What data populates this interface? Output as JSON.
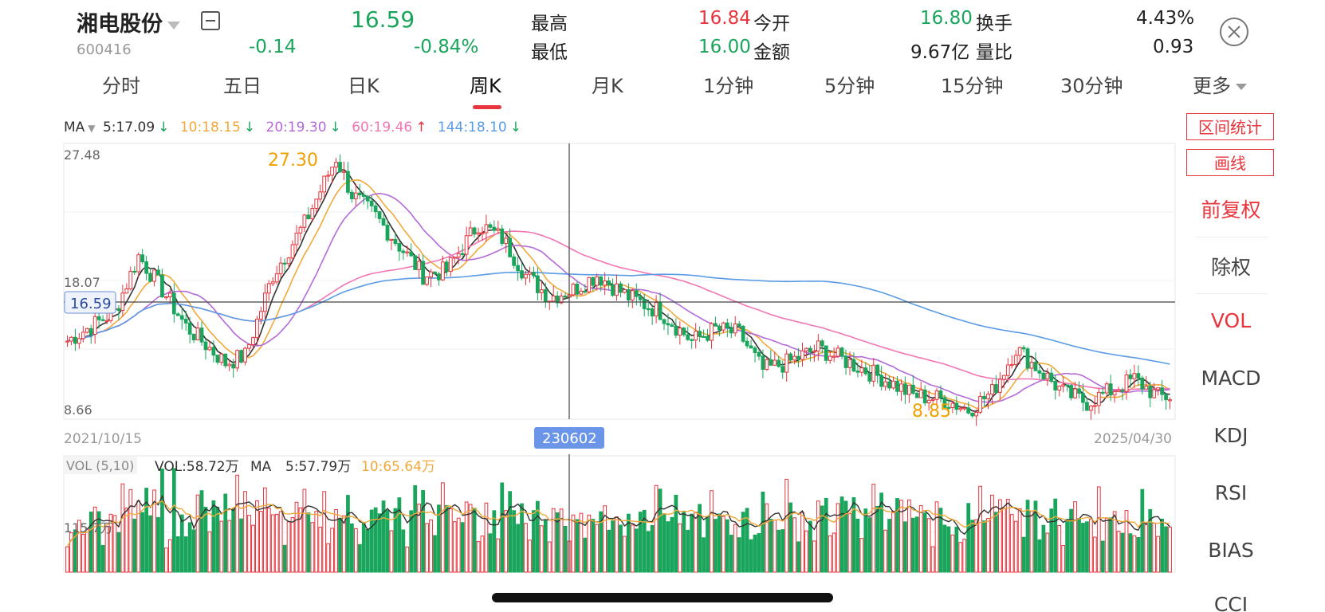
{
  "stock": {
    "name": "湘电股份",
    "code": "600416",
    "price": "16.59",
    "change": "-0.14",
    "change_pct": "-0.84%"
  },
  "stats": {
    "high_label": "最高",
    "high": "16.84",
    "low_label": "最低",
    "low": "16.00",
    "open_label": "今开",
    "open": "16.80",
    "amount_label": "金额",
    "amount": "9.67亿",
    "turnover_label": "换手",
    "turnover": "4.43%",
    "volratio_label": "量比",
    "volratio": "0.93"
  },
  "tabs": [
    {
      "label": "分时"
    },
    {
      "label": "五日"
    },
    {
      "label": "日K"
    },
    {
      "label": "周K",
      "active": true
    },
    {
      "label": "月K"
    },
    {
      "label": "1分钟"
    },
    {
      "label": "5分钟"
    },
    {
      "label": "15分钟"
    },
    {
      "label": "30分钟"
    },
    {
      "label": "更多"
    }
  ],
  "ma_legend": {
    "label": "MA",
    "ma5": "5:17.09",
    "ma10": "10:18.15",
    "ma20": "20:19.30",
    "ma60": "60:19.46",
    "ma144": "144:18.10",
    "colors": {
      "ma5": "#333333",
      "ma10": "#f2a93b",
      "ma20": "#b46ad8",
      "ma60": "#f276b4",
      "ma144": "#5a9be6"
    }
  },
  "side": {
    "range_stats": "区间统计",
    "draw_line": "画线",
    "items": [
      "前复权",
      "除权",
      "VOL",
      "MACD",
      "KDJ",
      "RSI",
      "BIAS",
      "CCI"
    ]
  },
  "price_chart": {
    "y_top": "27.48",
    "y_mid": "18.07",
    "y_bottom": "8.66",
    "max_label": "27.30",
    "min_label": "8.85",
    "crosshair_price": "16.59",
    "crosshair_date": "230602",
    "start_date": "2021/10/15",
    "end_date": "2025/04/30"
  },
  "vol_legend": {
    "title": "VOL (5,10)",
    "vol": "VOL:58.72万",
    "ma_label": "MA",
    "ma5": "5:57.79万",
    "ma10": "10:65.64万",
    "axis": "115.7万"
  },
  "chart_data": {
    "type": "candlestick",
    "ylim": [
      8.66,
      27.48
    ],
    "anchors": [
      [
        0,
        14.0
      ],
      [
        12,
        16.0
      ],
      [
        18,
        19.8
      ],
      [
        24,
        17.5
      ],
      [
        30,
        15.0
      ],
      [
        40,
        12.5
      ],
      [
        45,
        13.0
      ],
      [
        52,
        18.5
      ],
      [
        60,
        22.0
      ],
      [
        68,
        26.5
      ],
      [
        72,
        24.0
      ],
      [
        78,
        22.5
      ],
      [
        84,
        20.5
      ],
      [
        90,
        18.5
      ],
      [
        96,
        18.8
      ],
      [
        104,
        22.0
      ],
      [
        110,
        21.0
      ],
      [
        116,
        18.5
      ],
      [
        122,
        17.0
      ],
      [
        128,
        17.5
      ],
      [
        134,
        18.5
      ],
      [
        142,
        17.0
      ],
      [
        150,
        16.0
      ],
      [
        158,
        14.0
      ],
      [
        164,
        14.8
      ],
      [
        170,
        14.5
      ],
      [
        176,
        12.0
      ],
      [
        182,
        12.5
      ],
      [
        190,
        13.5
      ],
      [
        198,
        12.5
      ],
      [
        206,
        11.5
      ],
      [
        214,
        10.3
      ],
      [
        222,
        10.0
      ],
      [
        228,
        9.3
      ],
      [
        234,
        10.5
      ],
      [
        240,
        13.5
      ],
      [
        246,
        12.0
      ],
      [
        252,
        10.5
      ],
      [
        258,
        9.8
      ],
      [
        264,
        10.6
      ],
      [
        270,
        11.4
      ],
      [
        276,
        10.2
      ]
    ],
    "volume_max": 200
  }
}
